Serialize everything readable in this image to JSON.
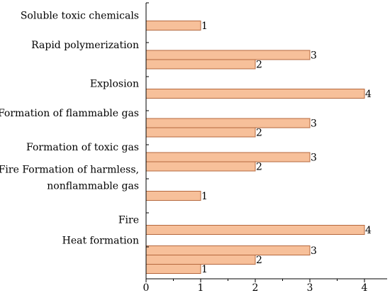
{
  "chart_data": {
    "type": "bar",
    "orientation": "horizontal",
    "title": "",
    "xlabel": "",
    "ylabel": "",
    "xlim": [
      0,
      4.4
    ],
    "xticks": [
      0,
      1,
      2,
      3,
      4
    ],
    "grid": false,
    "bar_color": "#F7C09A",
    "bar_edge_color": "#B5683E",
    "categories": [
      {
        "label": [
          "Soluble toxic chemicals"
        ],
        "values": [
          1
        ]
      },
      {
        "label": [
          "Rapid polymerization"
        ],
        "values": [
          3,
          2
        ]
      },
      {
        "label": [
          "Explosion"
        ],
        "values": [
          4
        ]
      },
      {
        "label": [
          "Formation of flammable gas"
        ],
        "values": [
          3,
          2
        ]
      },
      {
        "label": [
          "Formation of toxic gas"
        ],
        "values": [
          3,
          2
        ]
      },
      {
        "label": [
          "Fire Formation of harmless,",
          "nonflammable gas"
        ],
        "values": [
          1
        ]
      },
      {
        "label": [
          "Fire"
        ],
        "values": [
          4
        ]
      },
      {
        "label": [
          "Heat formation"
        ],
        "values": [
          3,
          2,
          1
        ]
      }
    ]
  }
}
